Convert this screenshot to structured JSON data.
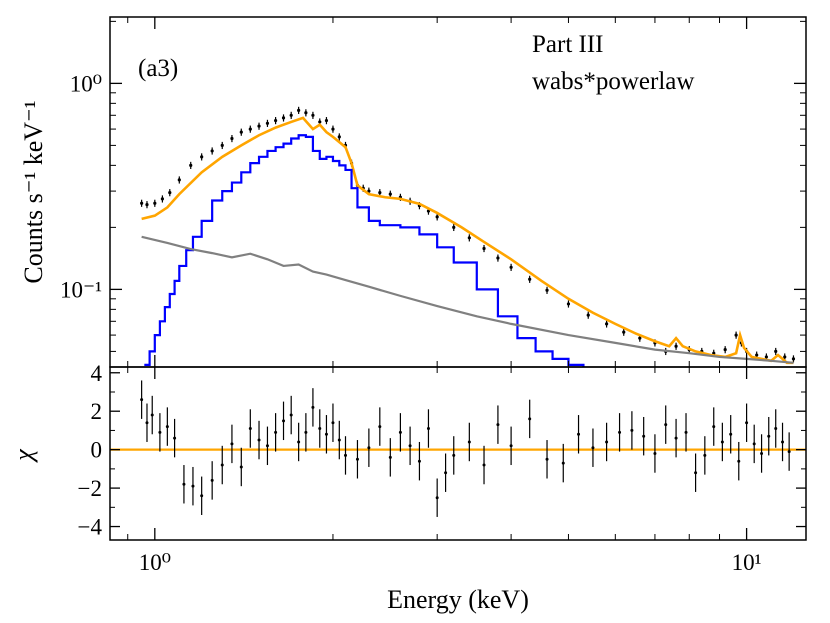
{
  "chart_data": [
    {
      "panel": "spectrum",
      "type": "line",
      "label": "(a3)",
      "annotation": [
        "Part III",
        "wabs*powerlaw"
      ],
      "ylabel": "Counts s⁻¹ keV⁻¹",
      "xlabel": "",
      "xscale": "log",
      "yscale": "log",
      "xlim": [
        0.84,
        12.6
      ],
      "ylim": [
        0.042,
        2.1
      ],
      "yticks": [
        {
          "value": 1.0,
          "label": "10⁰"
        },
        {
          "value": 0.1,
          "label": "10⁻¹"
        }
      ],
      "series": [
        {
          "role": "data",
          "color": "#000000",
          "style": "points with error bars",
          "x": [
            0.95,
            0.97,
            1.0,
            1.03,
            1.06,
            1.1,
            1.15,
            1.2,
            1.25,
            1.3,
            1.35,
            1.4,
            1.45,
            1.5,
            1.55,
            1.6,
            1.65,
            1.7,
            1.75,
            1.8,
            1.85,
            1.9,
            1.95,
            2.0,
            2.05,
            2.1,
            2.15,
            2.2,
            2.25,
            2.3,
            2.4,
            2.5,
            2.6,
            2.7,
            2.8,
            2.9,
            3.0,
            3.2,
            3.4,
            3.6,
            3.8,
            4.0,
            4.3,
            4.6,
            5.0,
            5.4,
            5.8,
            6.2,
            6.6,
            7.0,
            7.3,
            7.6,
            8.0,
            8.4,
            8.8,
            9.2,
            9.6,
            9.8,
            10.0,
            10.4,
            10.8,
            11.2,
            11.6,
            12.0
          ],
          "y": [
            0.262,
            0.258,
            0.262,
            0.275,
            0.295,
            0.34,
            0.4,
            0.44,
            0.47,
            0.5,
            0.54,
            0.58,
            0.6,
            0.62,
            0.64,
            0.66,
            0.68,
            0.7,
            0.74,
            0.72,
            0.7,
            0.65,
            0.66,
            0.6,
            0.55,
            0.5,
            0.41,
            0.32,
            0.31,
            0.3,
            0.295,
            0.29,
            0.28,
            0.268,
            0.255,
            0.24,
            0.225,
            0.2,
            0.178,
            0.158,
            0.142,
            0.128,
            0.112,
            0.099,
            0.085,
            0.075,
            0.068,
            0.062,
            0.058,
            0.055,
            0.05,
            0.053,
            0.051,
            0.05,
            0.049,
            0.051,
            0.06,
            0.055,
            0.05,
            0.048,
            0.047,
            0.05,
            0.047,
            0.046
          ]
        },
        {
          "role": "total model",
          "color": "#ffa500",
          "x": [
            0.95,
            1.0,
            1.05,
            1.1,
            1.2,
            1.3,
            1.4,
            1.5,
            1.6,
            1.7,
            1.78,
            1.85,
            1.9,
            1.95,
            2.0,
            2.1,
            2.15,
            2.2,
            2.3,
            2.45,
            2.6,
            2.8,
            3.0,
            3.3,
            3.6,
            4.0,
            4.5,
            5.0,
            5.5,
            6.0,
            6.5,
            7.0,
            7.4,
            7.6,
            7.8,
            8.2,
            8.7,
            9.2,
            9.6,
            9.75,
            9.9,
            10.2,
            10.6,
            11.0,
            11.3,
            11.5,
            11.7,
            12.0
          ],
          "y": [
            0.22,
            0.228,
            0.25,
            0.29,
            0.37,
            0.44,
            0.5,
            0.56,
            0.61,
            0.65,
            0.68,
            0.6,
            0.63,
            0.58,
            0.55,
            0.49,
            0.41,
            0.32,
            0.29,
            0.28,
            0.275,
            0.26,
            0.235,
            0.2,
            0.17,
            0.14,
            0.11,
            0.09,
            0.077,
            0.068,
            0.061,
            0.056,
            0.053,
            0.058,
            0.053,
            0.05,
            0.048,
            0.047,
            0.049,
            0.06,
            0.052,
            0.047,
            0.046,
            0.045,
            0.048,
            0.046,
            0.044,
            0.044
          ]
        },
        {
          "role": "model component 1",
          "color": "#0000ff",
          "style": "step",
          "x": [
            0.96,
            0.98,
            1.0,
            1.02,
            1.04,
            1.06,
            1.08,
            1.1,
            1.13,
            1.16,
            1.2,
            1.25,
            1.3,
            1.35,
            1.4,
            1.45,
            1.5,
            1.55,
            1.6,
            1.65,
            1.7,
            1.75,
            1.8,
            1.85,
            1.9,
            1.95,
            2.0,
            2.05,
            2.1,
            2.15,
            2.2,
            2.3,
            2.4,
            2.5,
            2.6,
            2.8,
            3.0,
            3.2,
            3.5,
            3.8,
            4.1,
            4.4,
            4.7,
            5.0,
            5.3
          ],
          "y": [
            0.043,
            0.05,
            0.06,
            0.07,
            0.082,
            0.095,
            0.11,
            0.13,
            0.155,
            0.18,
            0.215,
            0.27,
            0.3,
            0.33,
            0.37,
            0.41,
            0.44,
            0.47,
            0.49,
            0.51,
            0.54,
            0.56,
            0.55,
            0.47,
            0.43,
            0.44,
            0.42,
            0.4,
            0.38,
            0.31,
            0.25,
            0.215,
            0.205,
            0.205,
            0.2,
            0.185,
            0.16,
            0.135,
            0.1,
            0.074,
            0.058,
            0.05,
            0.046,
            0.043,
            0.042
          ]
        },
        {
          "role": "model component 2",
          "color": "#808080",
          "x": [
            0.95,
            1.05,
            1.15,
            1.25,
            1.35,
            1.45,
            1.55,
            1.65,
            1.75,
            1.85,
            1.95,
            2.1,
            2.3,
            2.6,
            3.0,
            3.5,
            4.0,
            5.0,
            6.0,
            7.0,
            8.0,
            9.0,
            10.0,
            11.0,
            12.0
          ],
          "y": [
            0.18,
            0.168,
            0.157,
            0.15,
            0.143,
            0.149,
            0.14,
            0.13,
            0.132,
            0.122,
            0.118,
            0.111,
            0.103,
            0.093,
            0.083,
            0.074,
            0.068,
            0.06,
            0.055,
            0.051,
            0.049,
            0.047,
            0.046,
            0.045,
            0.044
          ]
        }
      ]
    },
    {
      "panel": "residuals",
      "type": "scatter",
      "ylabel": "χ",
      "xlabel": "Energy (keV)",
      "xscale": "log",
      "xlim": [
        0.84,
        12.6
      ],
      "ylim": [
        -4.7,
        4.3
      ],
      "yticks": [
        -4,
        -2,
        0,
        2,
        4
      ],
      "xticks": [
        {
          "value": 1,
          "label": "10⁰"
        },
        {
          "value": 10,
          "label": "10¹"
        }
      ],
      "zero_line": {
        "value": 0,
        "color": "#ffa500"
      },
      "series": [
        {
          "role": "residuals",
          "color": "#000000",
          "style": "points with error bars",
          "x": [
            0.95,
            0.97,
            0.99,
            1.02,
            1.05,
            1.08,
            1.12,
            1.16,
            1.2,
            1.25,
            1.3,
            1.35,
            1.4,
            1.45,
            1.5,
            1.55,
            1.6,
            1.65,
            1.7,
            1.75,
            1.8,
            1.85,
            1.9,
            1.95,
            2.0,
            2.05,
            2.1,
            2.2,
            2.3,
            2.4,
            2.5,
            2.6,
            2.7,
            2.8,
            2.9,
            3.0,
            3.1,
            3.2,
            3.4,
            3.6,
            3.8,
            4.0,
            4.3,
            4.6,
            4.9,
            5.2,
            5.5,
            5.8,
            6.1,
            6.4,
            6.7,
            7.0,
            7.3,
            7.6,
            7.9,
            8.2,
            8.5,
            8.8,
            9.1,
            9.4,
            9.7,
            10.0,
            10.3,
            10.6,
            10.9,
            11.2,
            11.5,
            11.8
          ],
          "y": [
            2.6,
            1.4,
            1.8,
            0.9,
            1.2,
            0.6,
            -1.8,
            -1.9,
            -2.4,
            -1.6,
            -0.8,
            0.3,
            -0.9,
            1.1,
            0.5,
            0.2,
            0.9,
            1.5,
            1.8,
            0.4,
            0.9,
            2.2,
            1.1,
            0.8,
            1.4,
            0.5,
            -0.3,
            -0.5,
            0.1,
            1.2,
            -0.4,
            0.9,
            0.2,
            -0.6,
            1.1,
            -2.5,
            -1.2,
            -0.3,
            0.4,
            -0.8,
            1.3,
            0.2,
            1.6,
            -0.5,
            -0.7,
            0.8,
            0.1,
            0.4,
            0.9,
            1.0,
            0.7,
            -0.2,
            1.3,
            0.6,
            0.9,
            -1.2,
            -0.3,
            1.2,
            0.4,
            0.8,
            -0.6,
            1.4,
            0.3,
            -0.2,
            0.7,
            1.1,
            0.4,
            -0.1
          ],
          "yerr": 1
        }
      ]
    }
  ]
}
